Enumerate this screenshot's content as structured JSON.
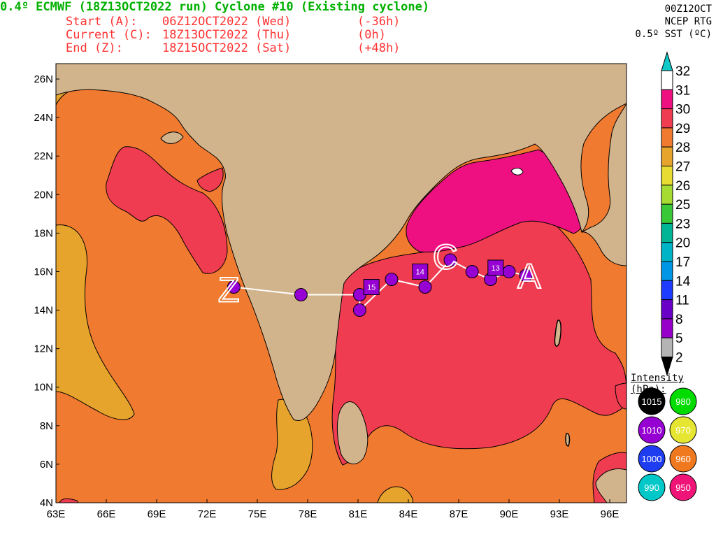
{
  "header": {
    "title": "0.4º ECMWF (18Z13OCT2022 run) Cyclone #10 (Existing cyclone)",
    "rows": [
      {
        "label": "Start (A):",
        "time": "06Z12OCT2022 (Wed)",
        "offset": "(-36h)"
      },
      {
        "label": "Current (C):",
        "time": "18Z13OCT2022 (Thu)",
        "offset": "(0h)"
      },
      {
        "label": "End (Z):",
        "time": "18Z15OCT2022 (Sat)",
        "offset": "(+48h)"
      }
    ]
  },
  "topright": [
    "00Z12OCT",
    "NCEP RTG",
    "0.5º SST (ºC)"
  ],
  "colorbar": {
    "labels": [
      "32",
      "31",
      "30",
      "29",
      "28",
      "27",
      "26",
      "25",
      "23",
      "20",
      "17",
      "14",
      "11",
      "8",
      "5",
      "2"
    ],
    "colors": [
      "#ffffff",
      "#ee1080",
      "#f03c50",
      "#f07a30",
      "#e6a42c",
      "#e8dc32",
      "#a6dc32",
      "#38c838",
      "#00b496",
      "#00b4c8",
      "#0096e6",
      "#1e3cff",
      "#6a00c8",
      "#9600c8",
      "#b4b4b4"
    ],
    "top_color": "#10c8c8",
    "bottom_color": "#000000"
  },
  "intensity": {
    "title": "Intensity (hPa):",
    "items": [
      {
        "label": "1015",
        "color": "#000000"
      },
      {
        "label": "980",
        "color": "#00dc00"
      },
      {
        "label": "1010",
        "color": "#9600d2"
      },
      {
        "label": "970",
        "color": "#e6e632"
      },
      {
        "label": "1000",
        "color": "#1e3cf0"
      },
      {
        "label": "960",
        "color": "#f0781e"
      },
      {
        "label": "990",
        "color": "#00c8c8"
      },
      {
        "label": "950",
        "color": "#f01478"
      }
    ]
  },
  "chart_data": {
    "type": "scatter",
    "title": "0.4º ECMWF (18Z13OCT2022 run) Cyclone #10 (Existing cyclone)",
    "xlabel": "",
    "ylabel": "",
    "xlim": [
      63,
      97
    ],
    "ylim": [
      4,
      26.8
    ],
    "x_ticks": [
      "63E",
      "66E",
      "69E",
      "72E",
      "75E",
      "78E",
      "81E",
      "84E",
      "87E",
      "90E",
      "93E",
      "96E"
    ],
    "y_ticks": [
      "4N",
      "6N",
      "8N",
      "10N",
      "12N",
      "14N",
      "16N",
      "18N",
      "20N",
      "22N",
      "24N",
      "26N"
    ],
    "grid": false,
    "track": [
      {
        "lon": 91.0,
        "lat": 15.8,
        "hpa": "1010"
      },
      {
        "lon": 90.0,
        "lat": 16.0,
        "hpa": "1010"
      },
      {
        "lon": 88.9,
        "lat": 15.6,
        "hpa": "1010"
      },
      {
        "lon": 87.8,
        "lat": 16.0,
        "hpa": "1010"
      },
      {
        "lon": 86.5,
        "lat": 16.6,
        "hpa": "1010"
      },
      {
        "lon": 85.0,
        "lat": 15.2,
        "hpa": "1010"
      },
      {
        "lon": 83.0,
        "lat": 15.6,
        "hpa": "1010"
      },
      {
        "lon": 81.1,
        "lat": 14.0,
        "hpa": "1010"
      },
      {
        "lon": 81.1,
        "lat": 14.8,
        "hpa": "1010"
      },
      {
        "lon": 77.6,
        "lat": 14.8,
        "hpa": "1010"
      },
      {
        "lon": 73.6,
        "lat": 15.2,
        "hpa": "1010"
      }
    ],
    "day_markers": [
      {
        "lon": 89.2,
        "lat": 16.2,
        "label": "13"
      },
      {
        "lon": 84.7,
        "lat": 16.0,
        "label": "14"
      },
      {
        "lon": 81.8,
        "lat": 15.2,
        "label": "15"
      }
    ],
    "track_letters": [
      {
        "lon": 91.2,
        "lat": 15.8,
        "label": "A"
      },
      {
        "lon": 86.2,
        "lat": 16.8,
        "label": "C"
      },
      {
        "lon": 73.3,
        "lat": 15.1,
        "label": "Z"
      }
    ]
  }
}
